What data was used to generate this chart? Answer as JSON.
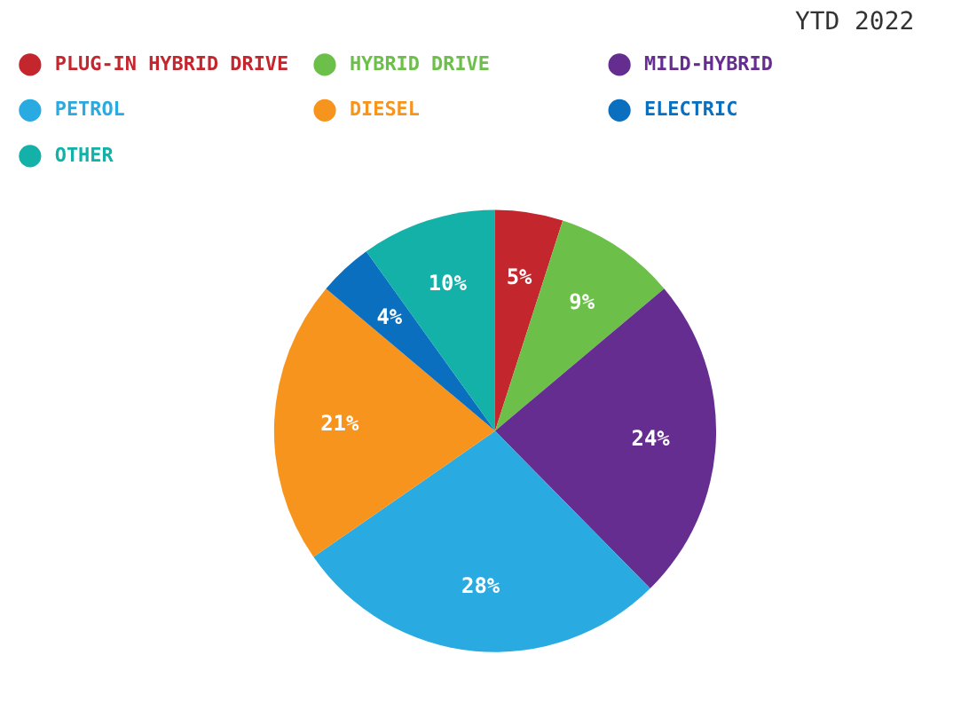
{
  "chart_data": {
    "type": "pie",
    "subtitle": "YTD 2022",
    "legend": "top",
    "categories": [
      "PLUG-IN HYBRID DRIVE",
      "HYBRID DRIVE",
      "MILD-HYBRID",
      "PETROL",
      "DIESEL",
      "ELECTRIC",
      "OTHER"
    ],
    "values": [
      5,
      9,
      24,
      28,
      21,
      4,
      10
    ],
    "colors": [
      "#c4262e",
      "#6cc04a",
      "#662d91",
      "#29abe2",
      "#f7941d",
      "#0a6fbf",
      "#14b1a9"
    ],
    "value_labels": [
      "5%",
      "9%",
      "24%",
      "28%",
      "21%",
      "4%",
      "10%"
    ]
  }
}
